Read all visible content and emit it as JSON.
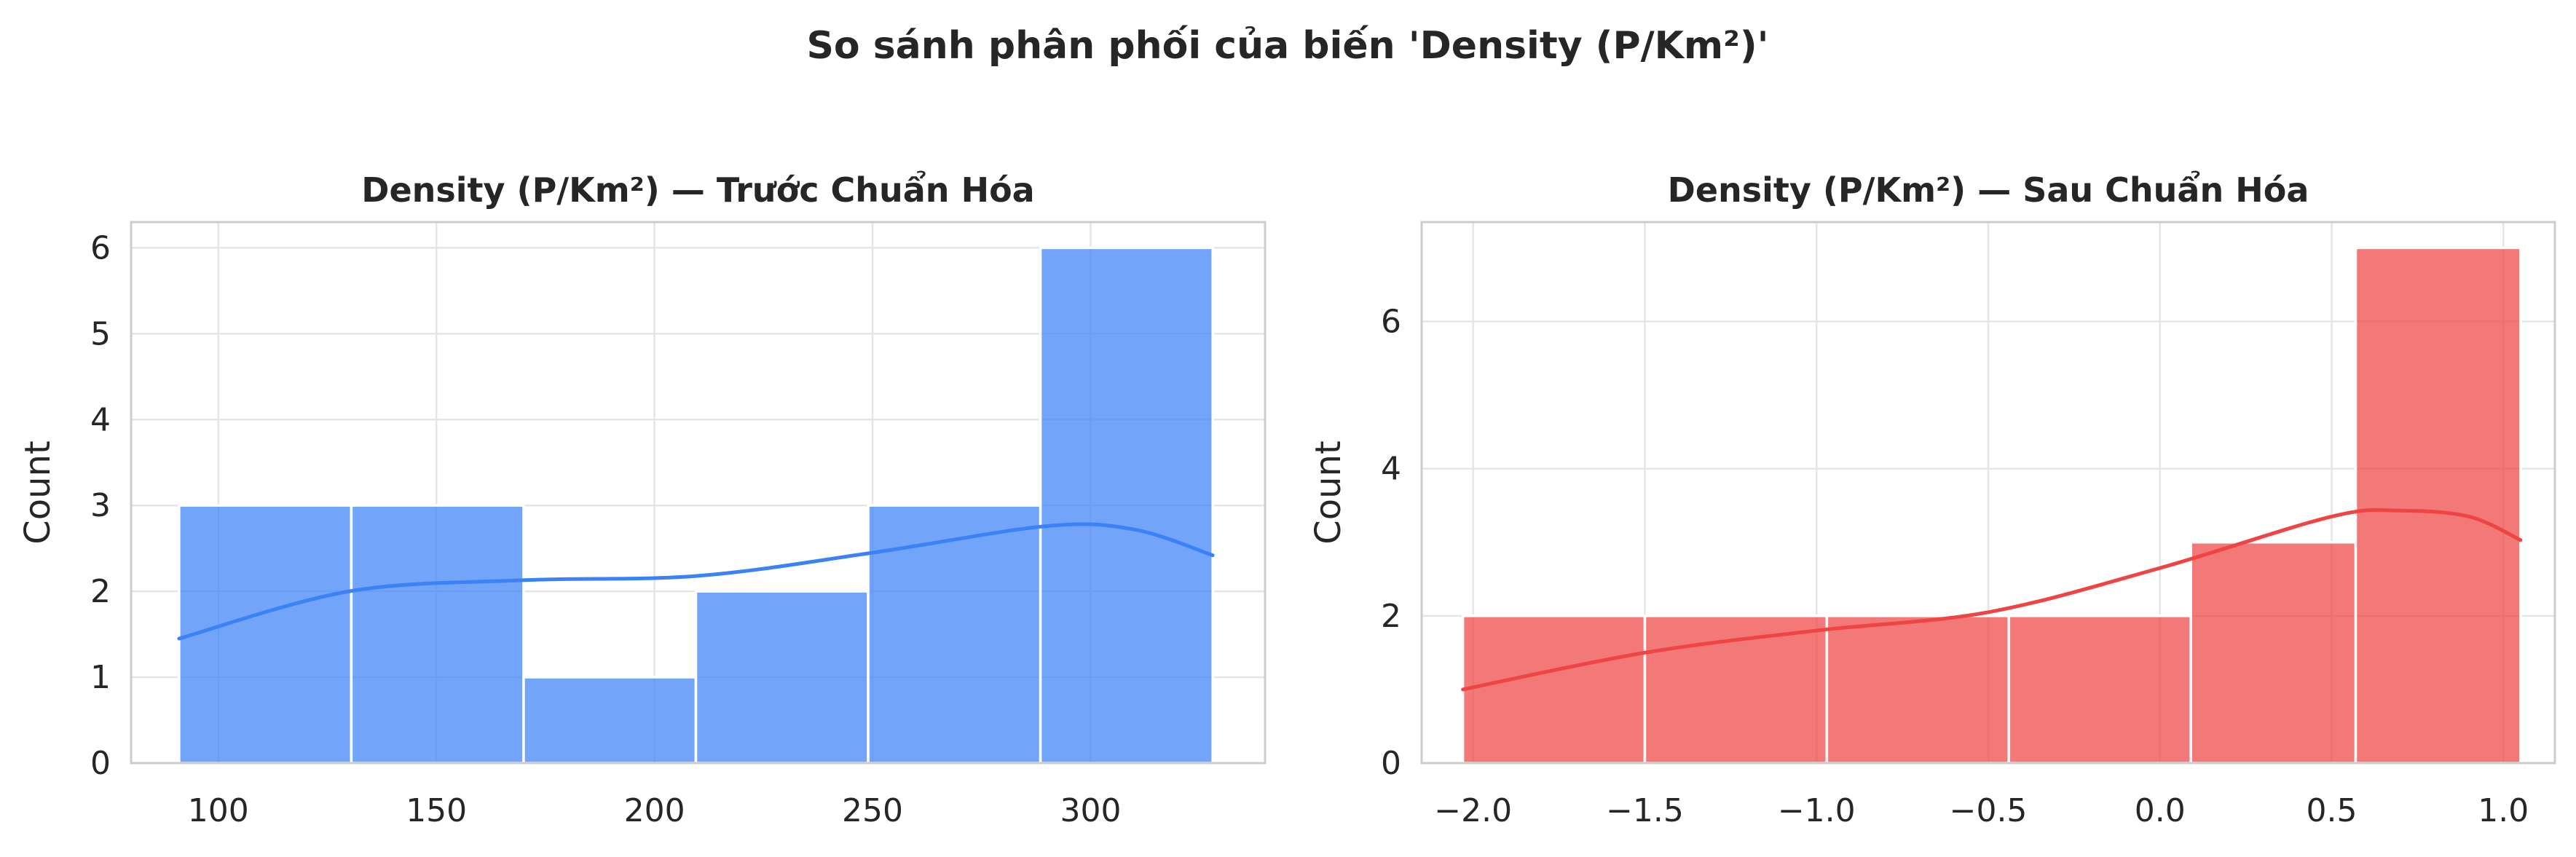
{
  "suptitle": "So sánh phân phối của biến 'Density (P/Km²)'",
  "chart_data": [
    {
      "type": "bar",
      "subtype": "histogram_with_kde",
      "title": "Density (P/Km²) — Trước Chuẩn Hóa",
      "xlabel": "",
      "ylabel": "Count",
      "bin_edges": [
        91,
        130.5,
        170,
        209.5,
        249,
        288.5,
        328
      ],
      "values": [
        3,
        3,
        1,
        2,
        3,
        6
      ],
      "kde": {
        "x": [
          91,
          130,
          170,
          210,
          250,
          290,
          310,
          328
        ],
        "y": [
          1.45,
          2.0,
          2.13,
          2.18,
          2.45,
          2.76,
          2.72,
          2.42
        ]
      },
      "xlim": [
        80,
        340
      ],
      "ylim": [
        0,
        6.3
      ],
      "xticks": [
        100,
        150,
        200,
        250,
        300
      ],
      "xtick_labels": [
        "100",
        "150",
        "200",
        "250",
        "300"
      ],
      "yticks": [
        0,
        1,
        2,
        3,
        4,
        5,
        6
      ],
      "ytick_labels": [
        "0",
        "1",
        "2",
        "3",
        "4",
        "5",
        "6"
      ],
      "grid": true,
      "color": "#3b82f6"
    },
    {
      "type": "bar",
      "subtype": "histogram_with_kde",
      "title": "Density (P/Km²) — Sau Chuẩn Hóa",
      "xlabel": "",
      "ylabel": "Count",
      "bin_edges": [
        -2.03,
        -1.5,
        -0.97,
        -0.44,
        0.09,
        0.57,
        1.05
      ],
      "values": [
        2,
        2,
        2,
        2,
        3,
        7
      ],
      "kde": {
        "x": [
          -2.03,
          -1.5,
          -1.0,
          -0.5,
          0.0,
          0.5,
          0.7,
          0.9,
          1.05
        ],
        "y": [
          1.0,
          1.5,
          1.8,
          2.05,
          2.65,
          3.35,
          3.43,
          3.35,
          3.03
        ]
      },
      "xlim": [
        -2.15,
        1.15
      ],
      "ylim": [
        0,
        7.35
      ],
      "xticks": [
        -2.0,
        -1.5,
        -1.0,
        -0.5,
        0.0,
        0.5,
        1.0
      ],
      "xtick_labels": [
        "−2.0",
        "−1.5",
        "−1.0",
        "−0.5",
        "0.0",
        "0.5",
        "1.0"
      ],
      "yticks": [
        0,
        2,
        4,
        6
      ],
      "ytick_labels": [
        "0",
        "2",
        "4",
        "6"
      ],
      "grid": true,
      "color": "#ef4444"
    }
  ]
}
